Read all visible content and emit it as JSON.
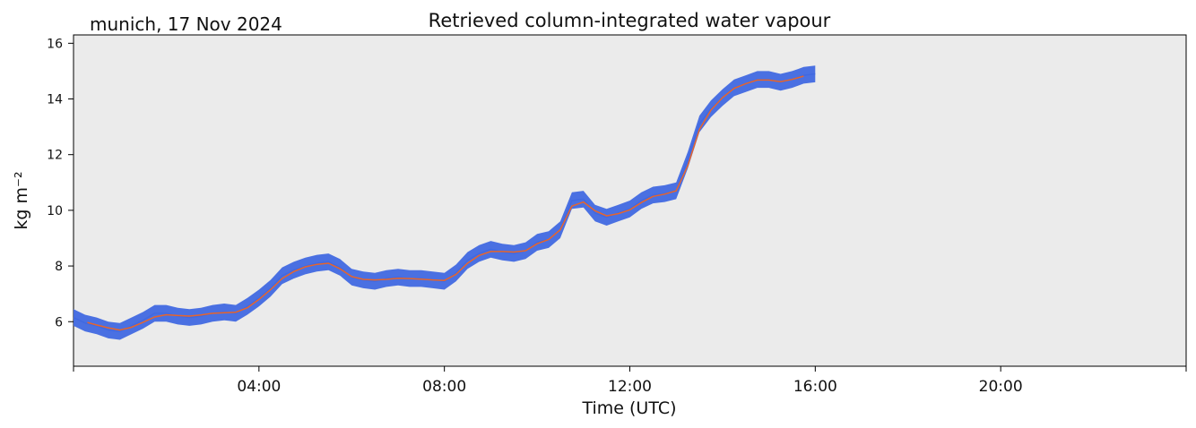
{
  "header": {
    "location_date": "munich, 17 Nov 2024",
    "title": "Retrieved column-integrated water vapour"
  },
  "chart_data": {
    "type": "line",
    "title": "Retrieved column-integrated water vapour",
    "xlabel": "Time (UTC)",
    "ylabel": "kg m⁻²",
    "xlim": [
      0,
      24
    ],
    "ylim": [
      4.4,
      16.3
    ],
    "x_ticks": [
      {
        "value": 0,
        "label": ""
      },
      {
        "value": 4,
        "label": "04:00"
      },
      {
        "value": 8,
        "label": "08:00"
      },
      {
        "value": 12,
        "label": "12:00"
      },
      {
        "value": 16,
        "label": "16:00"
      },
      {
        "value": 20,
        "label": "20:00"
      },
      {
        "value": 24,
        "label": ""
      }
    ],
    "y_ticks": [
      6,
      8,
      10,
      12,
      14,
      16
    ],
    "grid": false,
    "background": "#ebebeb",
    "series": [
      {
        "color": "#4169e1",
        "kind": "raw",
        "x": [
          0.0,
          0.25,
          0.5,
          0.75,
          1.0,
          1.25,
          1.5,
          1.75,
          2.0,
          2.25,
          2.5,
          2.75,
          3.0,
          3.25,
          3.5,
          3.75,
          4.0,
          4.25,
          4.5,
          4.75,
          5.0,
          5.25,
          5.5,
          5.75,
          6.0,
          6.25,
          6.5,
          6.75,
          7.0,
          7.25,
          7.5,
          7.75,
          8.0,
          8.25,
          8.5,
          8.75,
          9.0,
          9.25,
          9.5,
          9.75,
          10.0,
          10.25,
          10.5,
          10.75,
          11.0,
          11.25,
          11.5,
          11.75,
          12.0,
          12.25,
          12.5,
          12.75,
          13.0,
          13.25,
          13.5,
          13.75,
          14.0,
          14.25,
          14.5,
          14.75,
          15.0,
          15.25,
          15.5,
          15.75,
          16.0
        ],
        "y": [
          6.15,
          5.95,
          5.85,
          5.7,
          5.65,
          5.85,
          6.05,
          6.3,
          6.3,
          6.2,
          6.15,
          6.2,
          6.3,
          6.35,
          6.3,
          6.55,
          6.85,
          7.2,
          7.65,
          7.85,
          8.0,
          8.1,
          8.15,
          7.95,
          7.6,
          7.5,
          7.45,
          7.55,
          7.6,
          7.55,
          7.55,
          7.5,
          7.45,
          7.75,
          8.2,
          8.45,
          8.6,
          8.5,
          8.45,
          8.55,
          8.85,
          8.95,
          9.3,
          10.35,
          10.4,
          9.9,
          9.75,
          9.9,
          10.05,
          10.35,
          10.55,
          10.6,
          10.7,
          11.8,
          13.1,
          13.65,
          14.05,
          14.4,
          14.55,
          14.7,
          14.7,
          14.6,
          14.7,
          14.85,
          14.9
        ],
        "band": 0.3
      },
      {
        "color": "#e8652a",
        "kind": "smoothed",
        "x": [
          0.3,
          0.5,
          0.75,
          1.0,
          1.25,
          1.5,
          1.75,
          2.0,
          2.25,
          2.5,
          2.75,
          3.0,
          3.25,
          3.5,
          3.75,
          4.0,
          4.25,
          4.5,
          4.75,
          5.0,
          5.25,
          5.5,
          5.75,
          6.0,
          6.25,
          6.5,
          6.75,
          7.0,
          7.25,
          7.5,
          7.75,
          8.0,
          8.25,
          8.5,
          8.75,
          9.0,
          9.25,
          9.5,
          9.75,
          10.0,
          10.25,
          10.5,
          10.75,
          11.0,
          11.25,
          11.5,
          11.75,
          12.0,
          12.25,
          12.5,
          12.75,
          13.0,
          13.25,
          13.5,
          13.75,
          14.0,
          14.25,
          14.5,
          14.75,
          15.0,
          15.25,
          15.5,
          15.75
        ],
        "y": [
          5.97,
          5.88,
          5.78,
          5.7,
          5.8,
          5.98,
          6.17,
          6.25,
          6.22,
          6.2,
          6.24,
          6.3,
          6.32,
          6.34,
          6.5,
          6.8,
          7.15,
          7.55,
          7.8,
          7.97,
          8.06,
          8.1,
          7.9,
          7.62,
          7.52,
          7.5,
          7.52,
          7.56,
          7.55,
          7.53,
          7.5,
          7.48,
          7.7,
          8.1,
          8.38,
          8.52,
          8.52,
          8.5,
          8.55,
          8.8,
          8.95,
          9.3,
          10.15,
          10.3,
          9.98,
          9.8,
          9.88,
          10.02,
          10.28,
          10.5,
          10.58,
          10.7,
          11.6,
          12.9,
          13.6,
          14.05,
          14.38,
          14.55,
          14.68,
          14.68,
          14.62,
          14.7,
          14.82
        ]
      }
    ]
  }
}
